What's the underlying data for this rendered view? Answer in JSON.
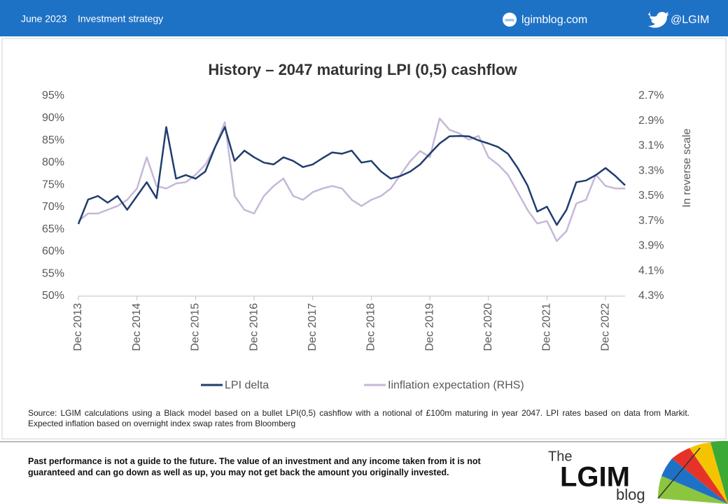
{
  "header": {
    "date": "June 2023",
    "section": "Investment strategy",
    "site": "lgimblog.com",
    "handle": "@LGIM"
  },
  "chart_data": {
    "type": "line",
    "title": "History – 2047 maturing LPI (0,5) cashflow",
    "y2label": "In reverse scale",
    "x": [
      "2013-12",
      "2014-02",
      "2014-04",
      "2014-06",
      "2014-08",
      "2014-10",
      "2014-12",
      "2015-02",
      "2015-04",
      "2015-06",
      "2015-08",
      "2015-10",
      "2015-12",
      "2016-02",
      "2016-04",
      "2016-06",
      "2016-08",
      "2016-10",
      "2016-12",
      "2017-02",
      "2017-04",
      "2017-06",
      "2017-08",
      "2017-10",
      "2017-12",
      "2018-02",
      "2018-04",
      "2018-06",
      "2018-08",
      "2018-10",
      "2018-12",
      "2019-02",
      "2019-04",
      "2019-06",
      "2019-08",
      "2019-10",
      "2019-12",
      "2020-02",
      "2020-04",
      "2020-06",
      "2020-08",
      "2020-10",
      "2020-12",
      "2021-02",
      "2021-04",
      "2021-06",
      "2021-08",
      "2021-10",
      "2021-12",
      "2022-02",
      "2022-04",
      "2022-06",
      "2022-08",
      "2022-10",
      "2022-12",
      "2023-02",
      "2023-04"
    ],
    "series": [
      {
        "name": "LPI delta",
        "color": "#1f3d6e",
        "values": [
          66.2,
          71.7,
          72.5,
          71,
          72.5,
          69.4,
          72.5,
          75.6,
          72,
          88,
          76.4,
          77.2,
          76.4,
          78,
          83.5,
          88,
          80.4,
          82.7,
          81.2,
          80,
          79.6,
          81.2,
          80.4,
          79,
          79.6,
          81,
          82.3,
          82,
          82.7,
          80,
          80.4,
          78,
          76.4,
          77,
          78,
          79.6,
          82,
          84.3,
          85.9,
          86,
          85.9,
          85,
          84.3,
          83.5,
          82,
          78.8,
          74.9,
          69,
          70.1,
          66,
          69.4,
          75.6,
          76,
          77.2,
          78.8,
          77,
          74.9
        ]
      },
      {
        "name": "Iinflation expectation (RHS)",
        "color": "#c5b8d8",
        "axis": "y2",
        "values": [
          3.7,
          3.64,
          3.64,
          3.61,
          3.58,
          3.53,
          3.44,
          3.19,
          3.42,
          3.44,
          3.4,
          3.39,
          3.33,
          3.25,
          3.11,
          2.91,
          3.5,
          3.61,
          3.64,
          3.5,
          3.42,
          3.36,
          3.5,
          3.53,
          3.47,
          3.44,
          3.42,
          3.44,
          3.53,
          3.58,
          3.53,
          3.5,
          3.44,
          3.33,
          3.22,
          3.14,
          3.19,
          2.88,
          2.97,
          3.0,
          3.05,
          3.02,
          3.19,
          3.25,
          3.33,
          3.47,
          3.61,
          3.72,
          3.7,
          3.86,
          3.78,
          3.56,
          3.53,
          3.33,
          3.42,
          3.44,
          3.44
        ]
      }
    ],
    "xlim": [
      "2013-12",
      "2023-04"
    ],
    "xticks": [
      {
        "value": "2013-12",
        "label": "Dec 2013"
      },
      {
        "value": "2014-12",
        "label": "Dec 2014"
      },
      {
        "value": "2015-12",
        "label": "Dec 2015"
      },
      {
        "value": "2016-12",
        "label": "Dec 2016"
      },
      {
        "value": "2017-12",
        "label": "Dec 2017"
      },
      {
        "value": "2018-12",
        "label": "Dec 2018"
      },
      {
        "value": "2019-12",
        "label": "Dec 2019"
      },
      {
        "value": "2020-12",
        "label": "Dec 2020"
      },
      {
        "value": "2021-12",
        "label": "Dec 2021"
      },
      {
        "value": "2022-12",
        "label": "Dec 2022"
      }
    ],
    "ylim": [
      50,
      95
    ],
    "yticks": [
      {
        "value": 50,
        "label": "50%"
      },
      {
        "value": 55,
        "label": "55%"
      },
      {
        "value": 60,
        "label": "60%"
      },
      {
        "value": 65,
        "label": "65%"
      },
      {
        "value": 70,
        "label": "70%"
      },
      {
        "value": 75,
        "label": "75%"
      },
      {
        "value": 80,
        "label": "80%"
      },
      {
        "value": 85,
        "label": "85%"
      },
      {
        "value": 90,
        "label": "90%"
      },
      {
        "value": 95,
        "label": "95%"
      }
    ],
    "y2lim": [
      4.3,
      2.7
    ],
    "y2ticks": [
      {
        "value": 4.3,
        "label": "4.3%"
      },
      {
        "value": 4.1,
        "label": "4.1%"
      },
      {
        "value": 3.9,
        "label": "3.9%"
      },
      {
        "value": 3.7,
        "label": "3.7%"
      },
      {
        "value": 3.5,
        "label": "3.5%"
      },
      {
        "value": 3.3,
        "label": "3.3%"
      },
      {
        "value": 3.1,
        "label": "3.1%"
      },
      {
        "value": 2.9,
        "label": "2.9%"
      },
      {
        "value": 2.7,
        "label": "2.7%"
      }
    ],
    "grid": false,
    "legend": "bottom"
  },
  "source": "Source: LGIM calculations using a Black model based on a bullet LPI(0,5) cashflow with a notional of £100m maturing in year 2047. LPI rates based on data from Markit. Expected inflation based on overnight index swap rates from Bloomberg",
  "footer": {
    "disclaimer": "Past performance is not a guide to the future. The value of an investment and any income taken from it is not guaranteed and can go down as well as up, you may not get back the amount you originally invested.",
    "logo": {
      "the": "The",
      "brand": "LGIM",
      "blog": "blog"
    }
  }
}
